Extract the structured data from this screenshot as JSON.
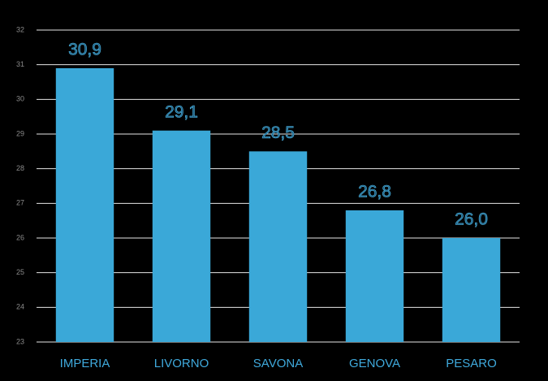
{
  "chart_data": {
    "type": "bar",
    "categories": [
      "IMPERIA",
      "LIVORNO",
      "SAVONA",
      "GENOVA",
      "PESARO"
    ],
    "values": [
      30.9,
      29.1,
      28.5,
      26.8,
      26.0
    ],
    "value_labels": [
      "30,9",
      "29,1",
      "28,5",
      "26,8",
      "26,0"
    ],
    "color": "#3aa8d8",
    "ylim": [
      23,
      32
    ],
    "yticks": [
      23,
      24,
      25,
      26,
      27,
      28,
      29,
      30,
      31,
      32
    ],
    "grid": true
  }
}
